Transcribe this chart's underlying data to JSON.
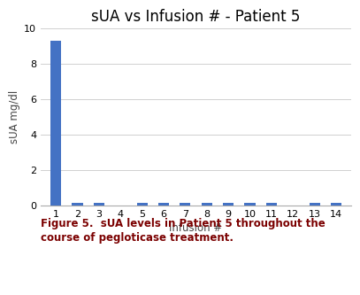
{
  "title": "sUA vs Infusion # - Patient 5",
  "xlabel": "Infusion #",
  "ylabel": "sUA mg/dl",
  "categories": [
    1,
    2,
    3,
    4,
    5,
    6,
    7,
    8,
    9,
    10,
    11,
    12,
    13,
    14
  ],
  "values": [
    9.3,
    0.15,
    0.15,
    0.0,
    0.15,
    0.15,
    0.15,
    0.15,
    0.15,
    0.15,
    0.15,
    0.0,
    0.15,
    0.15
  ],
  "bar_color": "#4472c4",
  "ylim": [
    0,
    10
  ],
  "yticks": [
    0,
    2,
    4,
    6,
    8,
    10
  ],
  "title_fontsize": 12,
  "axis_label_fontsize": 8.5,
  "tick_fontsize": 8,
  "caption_line1": "Figure 5.  sUA levels in Patient 5 throughout the",
  "caption_line2": "course of pegloticase treatment.",
  "caption_color": "#7B0000",
  "background_color": "#ffffff",
  "bar_width": 0.5
}
